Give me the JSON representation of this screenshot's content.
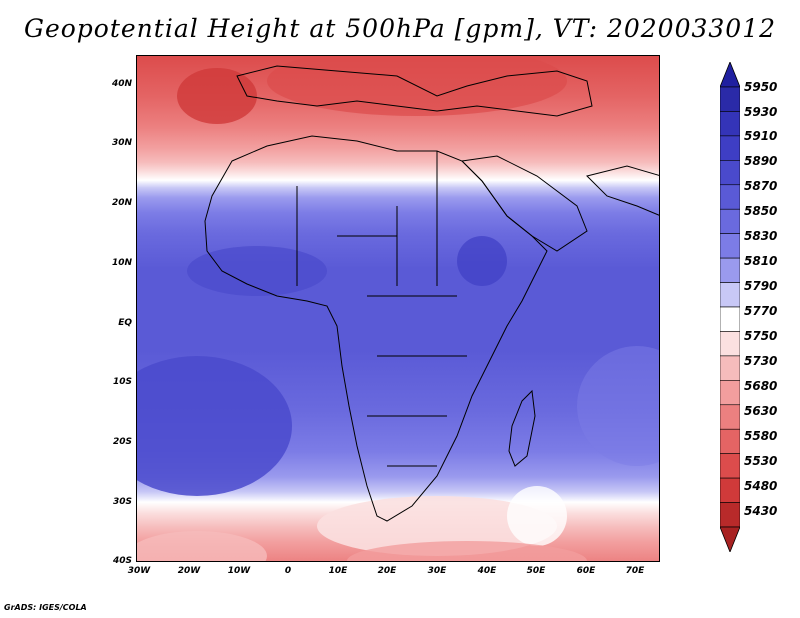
{
  "title": "Geopotential Height at 500hPa [gpm], VT: 2020033012",
  "credit": "GrADS: IGES/COLA",
  "lat_labels": [
    "40N",
    "30N",
    "20N",
    "10N",
    "EQ",
    "10S",
    "20S",
    "30S",
    "40S"
  ],
  "lon_labels": [
    "30W",
    "20W",
    "10W",
    "0",
    "10E",
    "20E",
    "30E",
    "40E",
    "50E",
    "60E",
    "70E"
  ],
  "legend": {
    "levels": [
      "5950",
      "5930",
      "5910",
      "5890",
      "5870",
      "5850",
      "5830",
      "5810",
      "5790",
      "5770",
      "5750",
      "5730",
      "5680",
      "5630",
      "5580",
      "5530",
      "5480",
      "5430"
    ],
    "colors": [
      "#2a2aa8",
      "#3434b8",
      "#3e3ec4",
      "#4a4acc",
      "#5a5ad6",
      "#6a6ade",
      "#7c7ce6",
      "#9a9aee",
      "#c8c8f6",
      "#ffffff",
      "#fbe0e0",
      "#f6bcbc",
      "#f29e9e",
      "#ec8080",
      "#e46464",
      "#dc4c4c",
      "#d03a3a",
      "#b82a2a"
    ],
    "top_color": "#2020a0",
    "bottom_color": "#a82222"
  },
  "map": {
    "land_outline_color": "#000000"
  }
}
